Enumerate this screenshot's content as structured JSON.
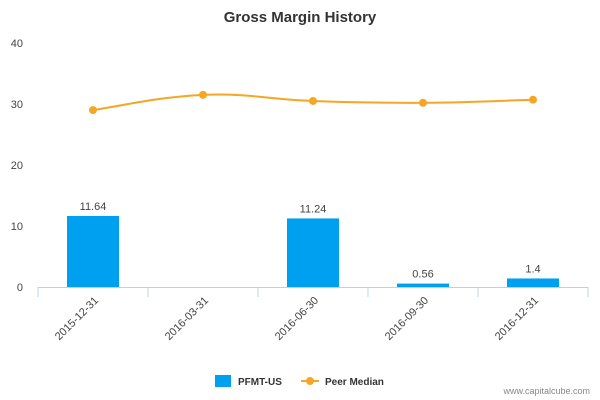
{
  "chart_data": {
    "type": "bar",
    "title": "Gross Margin History",
    "categories": [
      "2015-12-31",
      "2016-03-31",
      "2016-06-30",
      "2016-09-30",
      "2016-12-31"
    ],
    "ylim": [
      0,
      40
    ],
    "yticks": [
      0,
      10,
      20,
      30,
      40
    ],
    "grid": false,
    "legend_position": "bottom",
    "series": [
      {
        "name": "PFMT-US",
        "kind": "bar",
        "color": "#00a0f0",
        "values": [
          11.64,
          null,
          11.24,
          0.56,
          1.4
        ],
        "labels": [
          "11.64",
          "",
          "11.24",
          "0.56",
          "1.4"
        ]
      },
      {
        "name": "Peer Median",
        "kind": "line",
        "color": "#f5a623",
        "values": [
          29.0,
          31.5,
          30.5,
          30.2,
          30.7
        ]
      }
    ]
  },
  "credit": "www.capitalcube.com"
}
